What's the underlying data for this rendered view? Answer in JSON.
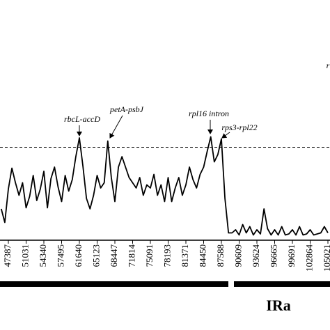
{
  "chart_data": {
    "type": "line",
    "categories": [
      null,
      null,
      "47387",
      null,
      null,
      null,
      null,
      "51031",
      null,
      null,
      null,
      null,
      "54340",
      null,
      null,
      null,
      null,
      "57495",
      null,
      null,
      null,
      null,
      "61640",
      null,
      null,
      null,
      null,
      "65123",
      null,
      null,
      null,
      null,
      "68447",
      null,
      null,
      null,
      null,
      "71814",
      null,
      null,
      null,
      null,
      "75091",
      null,
      null,
      null,
      null,
      "78193",
      null,
      null,
      null,
      null,
      "81371",
      null,
      null,
      null,
      null,
      "84450",
      null,
      null,
      null,
      null,
      "87588",
      null,
      null,
      null,
      null,
      "90609",
      null,
      null,
      null,
      null,
      "93624",
      null,
      null,
      null,
      null,
      "96665",
      null,
      null,
      null,
      null,
      "99691",
      null,
      null,
      null,
      null,
      "102864",
      null,
      null,
      null,
      null,
      "105021"
    ],
    "values": [
      0.03,
      0.017,
      0.049,
      0.069,
      0.055,
      0.043,
      0.055,
      0.031,
      0.042,
      0.062,
      0.038,
      0.049,
      0.066,
      0.031,
      0.059,
      0.07,
      0.051,
      0.037,
      0.062,
      0.047,
      0.058,
      0.08,
      0.098,
      0.071,
      0.04,
      0.03,
      0.043,
      0.062,
      0.05,
      0.055,
      0.095,
      0.06,
      0.037,
      0.07,
      0.08,
      0.07,
      0.06,
      0.055,
      0.05,
      0.06,
      0.043,
      0.053,
      0.05,
      0.063,
      0.043,
      0.053,
      0.037,
      0.06,
      0.037,
      0.05,
      0.06,
      0.043,
      0.053,
      0.07,
      0.058,
      0.05,
      0.063,
      0.07,
      0.085,
      0.099,
      0.075,
      0.082,
      0.097,
      0.04,
      0.007,
      0.007,
      0.01,
      0.005,
      0.015,
      0.007,
      0.013,
      0.005,
      0.01,
      0.006,
      0.03,
      0.011,
      0.005,
      0.01,
      0.005,
      0.013,
      0.005,
      0.006,
      0.01,
      0.005,
      0.013,
      0.005,
      0.006,
      0.01,
      0.005,
      0.006,
      0.007,
      0.013,
      0.007
    ],
    "color": "#000000",
    "ylim": [
      0,
      0.2
    ],
    "threshold": 0.089,
    "annotations": [
      "rbcL-accD",
      "petA-psbJ",
      "rpl16 intron",
      "rps3-rpl22",
      "r"
    ],
    "region_label": "IRa"
  }
}
